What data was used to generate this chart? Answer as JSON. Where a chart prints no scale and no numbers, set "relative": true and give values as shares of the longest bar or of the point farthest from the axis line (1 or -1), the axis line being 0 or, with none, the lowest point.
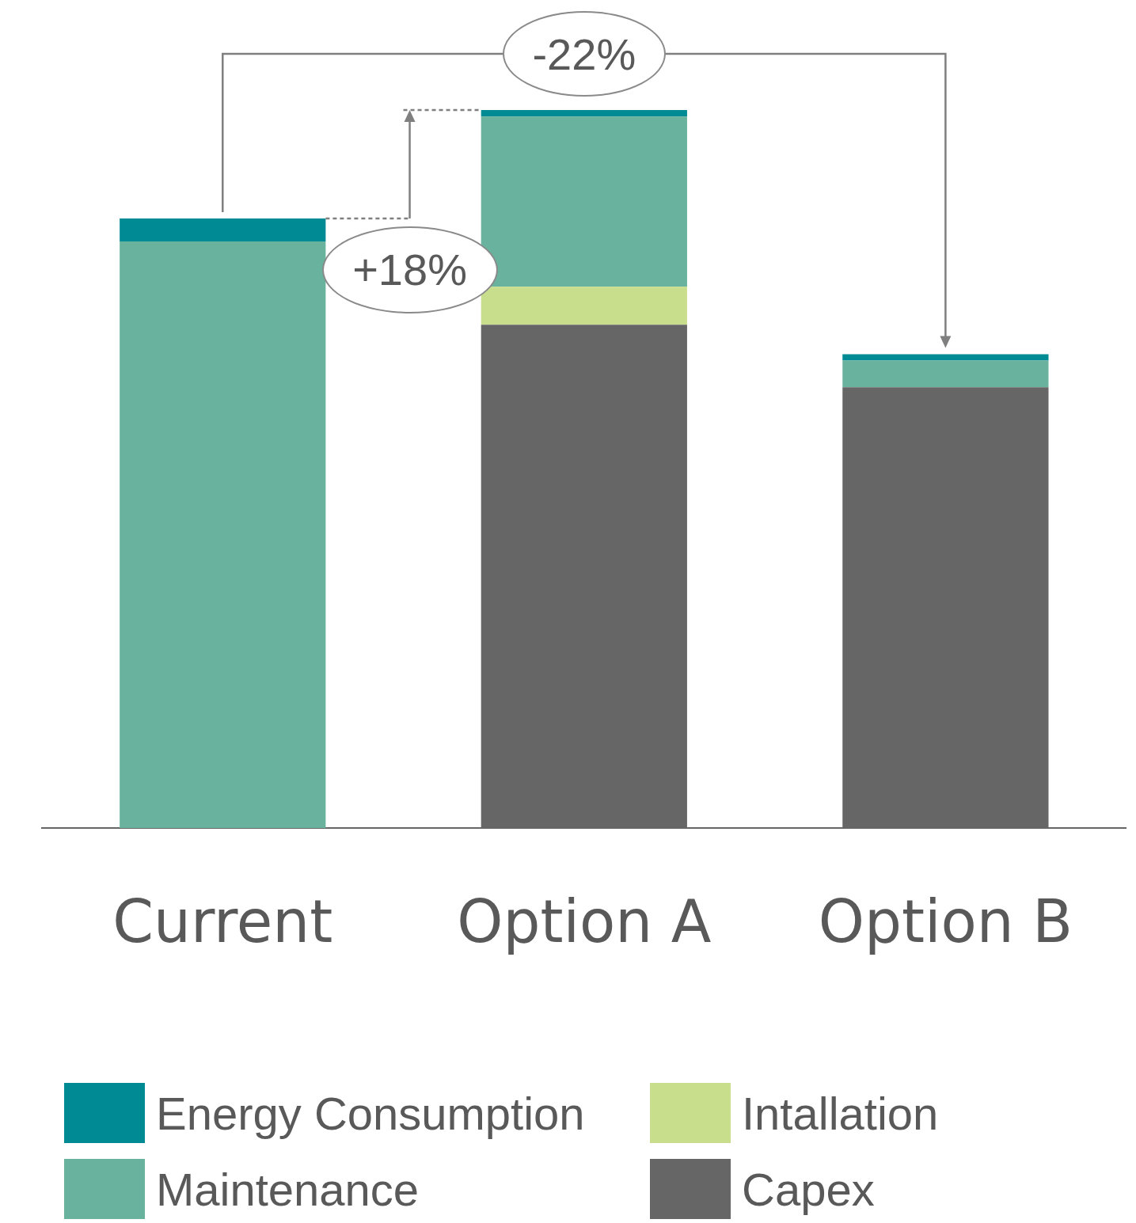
{
  "chart_data": {
    "type": "bar",
    "relative": true,
    "stacked": true,
    "categories": [
      "Current",
      "Option A",
      "Option B"
    ],
    "series": [
      {
        "name": "Capex",
        "color": "#666666",
        "values": [
          null,
          0.701,
          0.614
        ]
      },
      {
        "name": "Intallation",
        "color": "#c8de8c",
        "values": [
          null,
          0.053,
          null
        ]
      },
      {
        "name": "Maintenance",
        "color": "#69b29e",
        "values": [
          0.817,
          0.237,
          0.037
        ]
      },
      {
        "name": "Energy Consumption",
        "color": "#008a93",
        "values": [
          0.032,
          0.009,
          0.009
        ]
      }
    ],
    "legend": "bottom",
    "grid": false,
    "annotations": [
      "+18%",
      "-22%"
    ]
  }
}
